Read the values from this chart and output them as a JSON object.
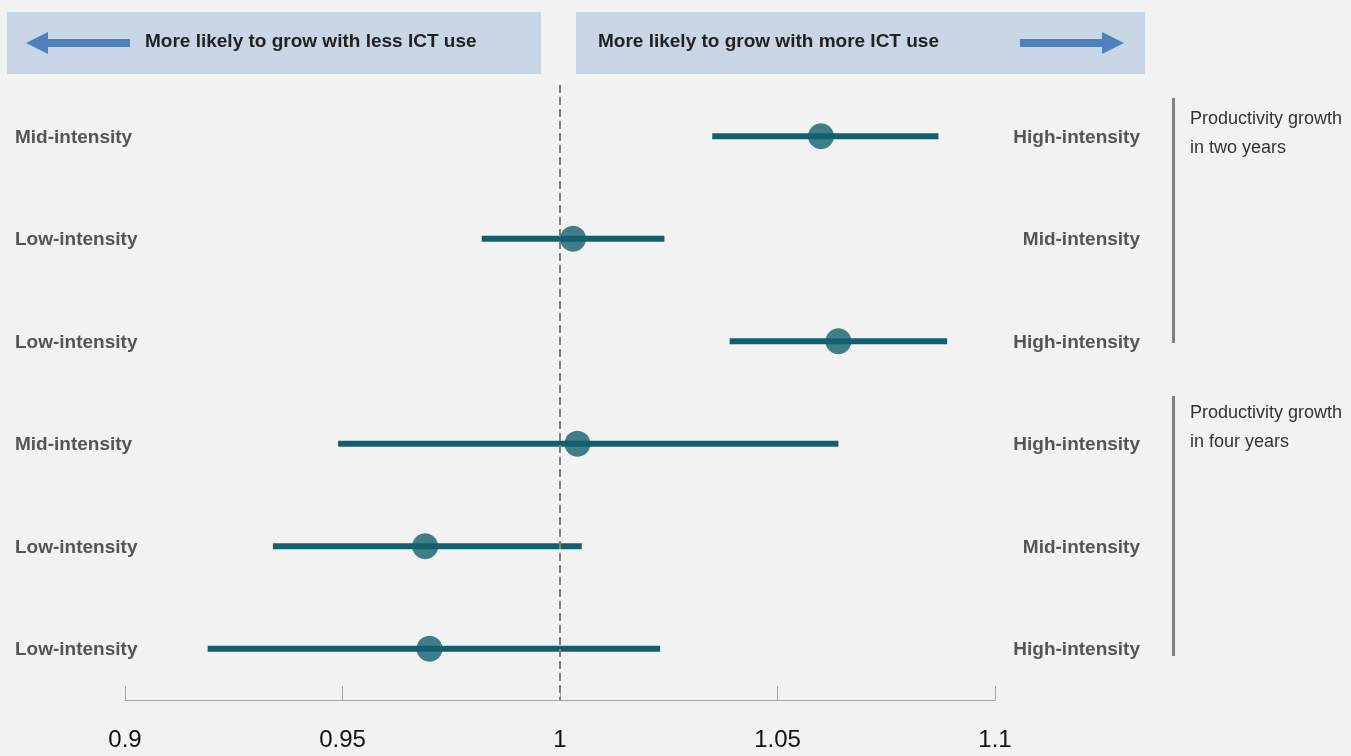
{
  "chart_data": {
    "type": "scatter",
    "categories": [
      "Mid-intensity",
      "Low-intensity",
      "Low-intensity",
      "Mid-intensity",
      "Low-intensity",
      "Low-intensity"
    ],
    "y2_categories": [
      "High-intensity",
      "Mid-intensity",
      "High-intensity",
      "High-intensity",
      "Mid-intensity",
      "High-intensity"
    ],
    "orientation": "horizontal",
    "values": [
      1.06,
      1.003,
      1.064,
      1.004,
      0.969,
      0.97
    ],
    "errors": [
      [
        1.035,
        1.087
      ],
      [
        0.982,
        1.024
      ],
      [
        1.039,
        1.089
      ],
      [
        0.949,
        1.064
      ],
      [
        0.934,
        1.005
      ],
      [
        0.919,
        1.023
      ]
    ],
    "color": "#135f6d",
    "marker": "circle",
    "xlim": [
      0.9,
      1.1
    ],
    "xticks": [
      0.9,
      0.95,
      1,
      1.05,
      1.1
    ],
    "grid": false,
    "ref_lines": [
      {
        "axis": "x",
        "value": 1,
        "color": "#808080",
        "line_style": "dashed"
      }
    ],
    "annotations": [
      "More likely to grow with less ICT use",
      "More likely to grow with more ICT use",
      "Productivity growth in two years",
      "Productivity growth in four years"
    ]
  }
}
